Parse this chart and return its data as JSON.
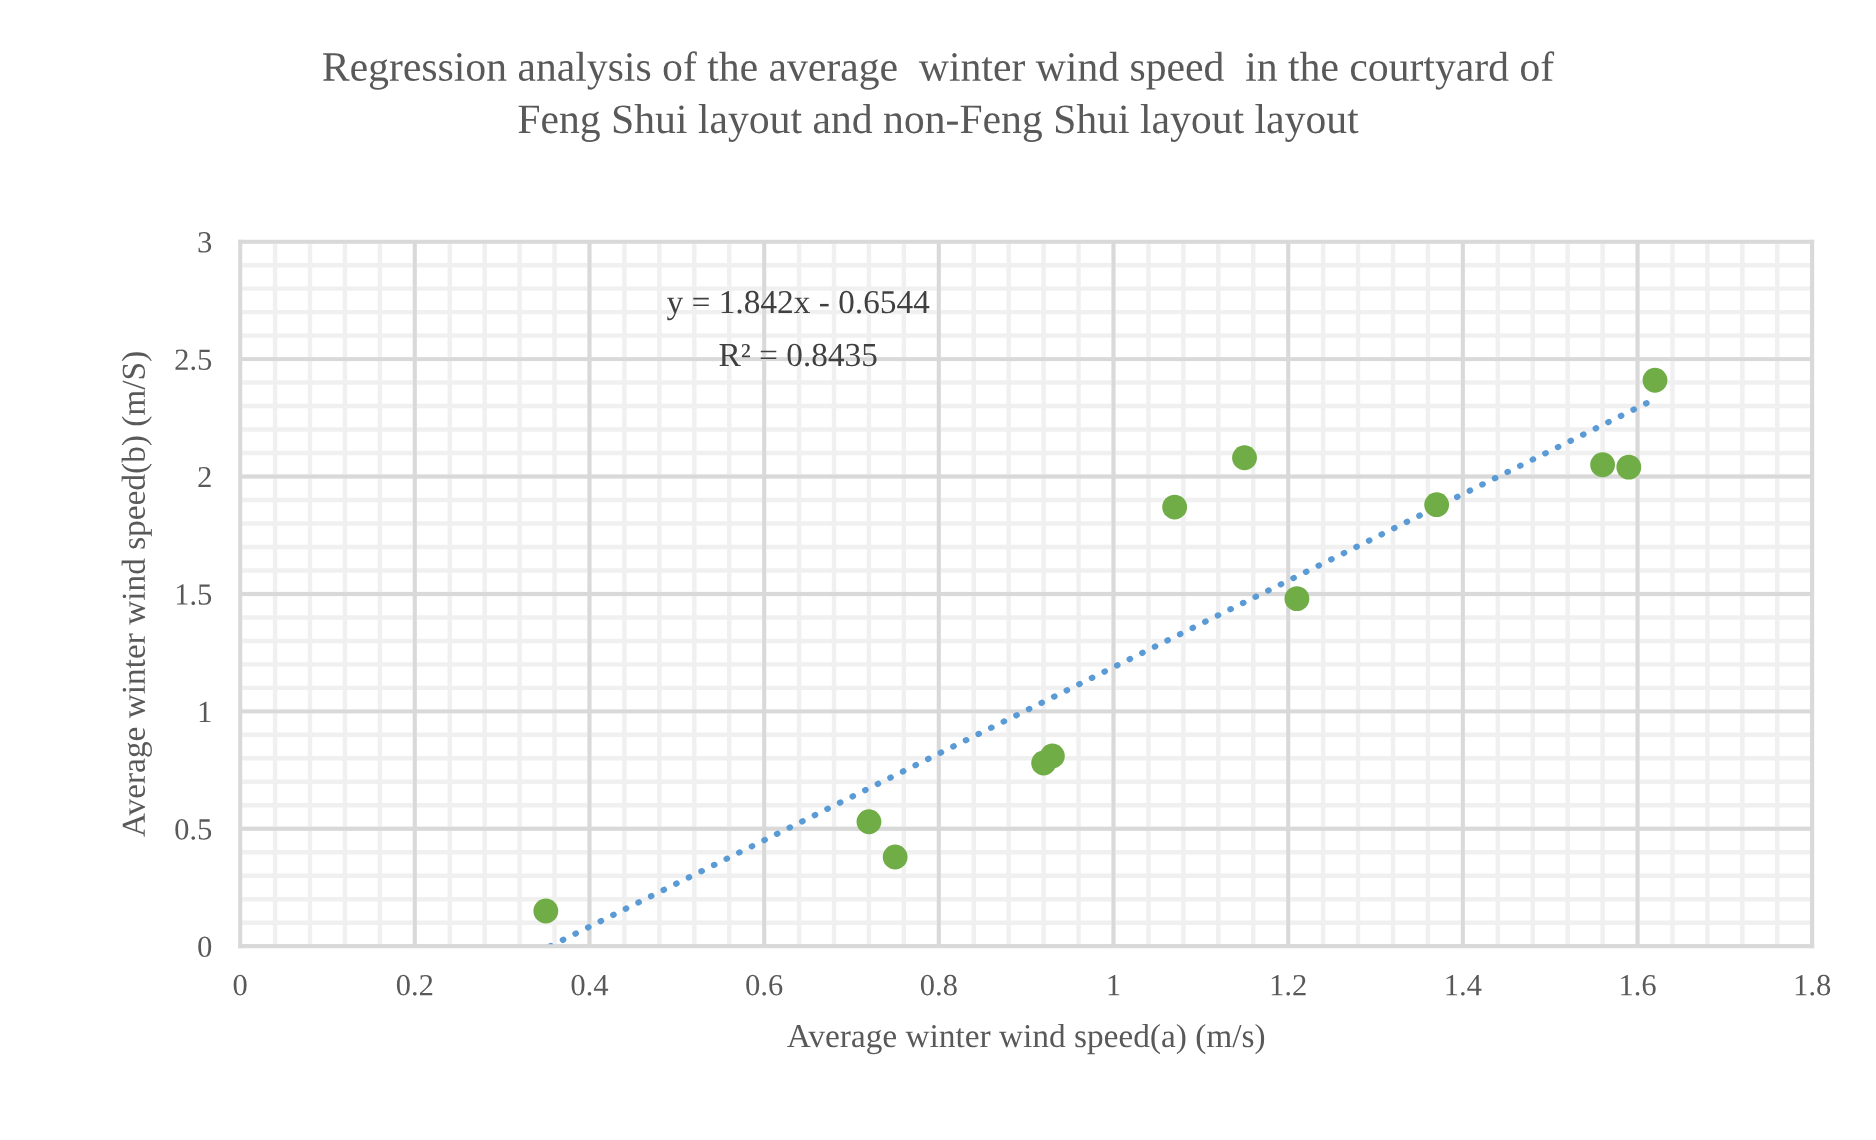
{
  "chart_data": {
    "type": "scatter",
    "title": "Regression analysis of the average  winter wind speed  in the courtyard of\nFeng Shui layout and non-Feng Shui layout layout",
    "xlabel": "Average winter wind speed(a) (m/s)",
    "ylabel": "Average winter wind speed(b) (m/S)",
    "annotations": [
      "y = 1.842x - 0.6544",
      "R² = 0.8435"
    ],
    "series": [
      {
        "color": "#70ad47",
        "marker": "circle",
        "x": [
          0.35,
          0.72,
          0.75,
          0.92,
          0.93,
          1.07,
          1.15,
          1.21,
          1.37,
          1.56,
          1.59,
          1.62
        ],
        "values": [
          0.15,
          0.53,
          0.38,
          0.78,
          0.81,
          1.87,
          2.08,
          1.48,
          1.88,
          2.05,
          2.04,
          2.41
        ]
      },
      {
        "type": "line",
        "color": "#5b9bd5",
        "line_style": "dotted",
        "marker": "none",
        "x": [
          0.355,
          1.62
        ],
        "values": [
          0.0,
          2.33
        ]
      }
    ],
    "xlim": [
      0,
      1.8
    ],
    "xticks": [
      0,
      0.2,
      0.4,
      0.6,
      0.8,
      1,
      1.2,
      1.4,
      1.6,
      1.8
    ],
    "ylim": [
      0,
      3
    ],
    "yticks": [
      0,
      0.5,
      1,
      1.5,
      2,
      2.5,
      3
    ],
    "grid": true,
    "legend": false
  }
}
